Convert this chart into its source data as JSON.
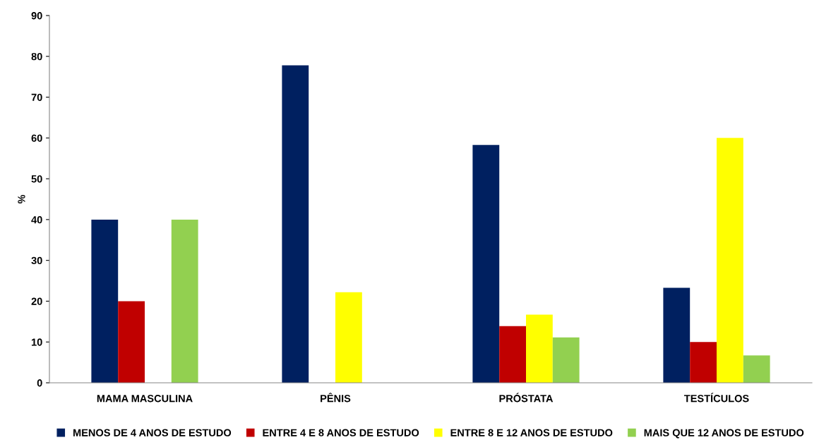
{
  "chart_data": {
    "type": "bar",
    "ylabel": "%",
    "categories": [
      "MAMA MASCULINA",
      "PÊNIS",
      "PRÓSTATA",
      "TESTÍCULOS"
    ],
    "series": [
      {
        "name": "MENOS DE 4 ANOS DE ESTUDO",
        "color": "#002060",
        "values": [
          40,
          77.8,
          58.3,
          23.3
        ]
      },
      {
        "name": "ENTRE 4 E 8 ANOS DE ESTUDO",
        "color": "#c00000",
        "values": [
          20,
          0,
          13.9,
          10
        ]
      },
      {
        "name": "ENTRE 8 E 12 ANOS DE ESTUDO",
        "color": "#ffff00",
        "values": [
          0,
          22.2,
          16.7,
          60
        ]
      },
      {
        "name": "MAIS QUE 12 ANOS DE ESTUDO",
        "color": "#92d050",
        "values": [
          40,
          0,
          11.1,
          6.7
        ]
      }
    ],
    "ylim": [
      0,
      90
    ],
    "yticks": [
      0,
      10,
      20,
      30,
      40,
      50,
      60,
      70,
      80,
      90
    ],
    "grid": false,
    "legend": "bottom"
  }
}
